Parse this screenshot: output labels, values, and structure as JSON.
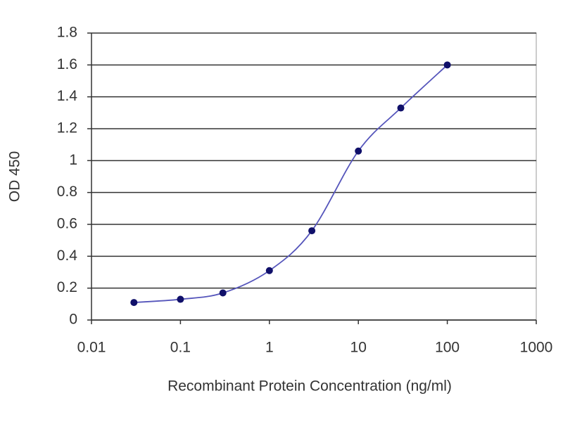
{
  "chart_data": {
    "type": "line",
    "x_label": "Recombinant Protein Concentration (ng/ml)",
    "y_label": "OD 450",
    "x": [
      0.03,
      0.1,
      0.3,
      1,
      3,
      10,
      30,
      100
    ],
    "values": [
      0.11,
      0.13,
      0.17,
      0.31,
      0.56,
      1.06,
      1.33,
      1.6
    ],
    "color": "#5555bb",
    "marker_color": "#10106a",
    "xscale": "log",
    "xlim": [
      0.01,
      1000
    ],
    "xticks": [
      0.01,
      0.1,
      1,
      10,
      100,
      1000
    ],
    "ylim": [
      0,
      1.8
    ],
    "yticks": [
      0,
      0.2,
      0.4,
      0.6,
      0.8,
      1,
      1.2,
      1.4,
      1.6,
      1.8
    ],
    "grid": true
  }
}
